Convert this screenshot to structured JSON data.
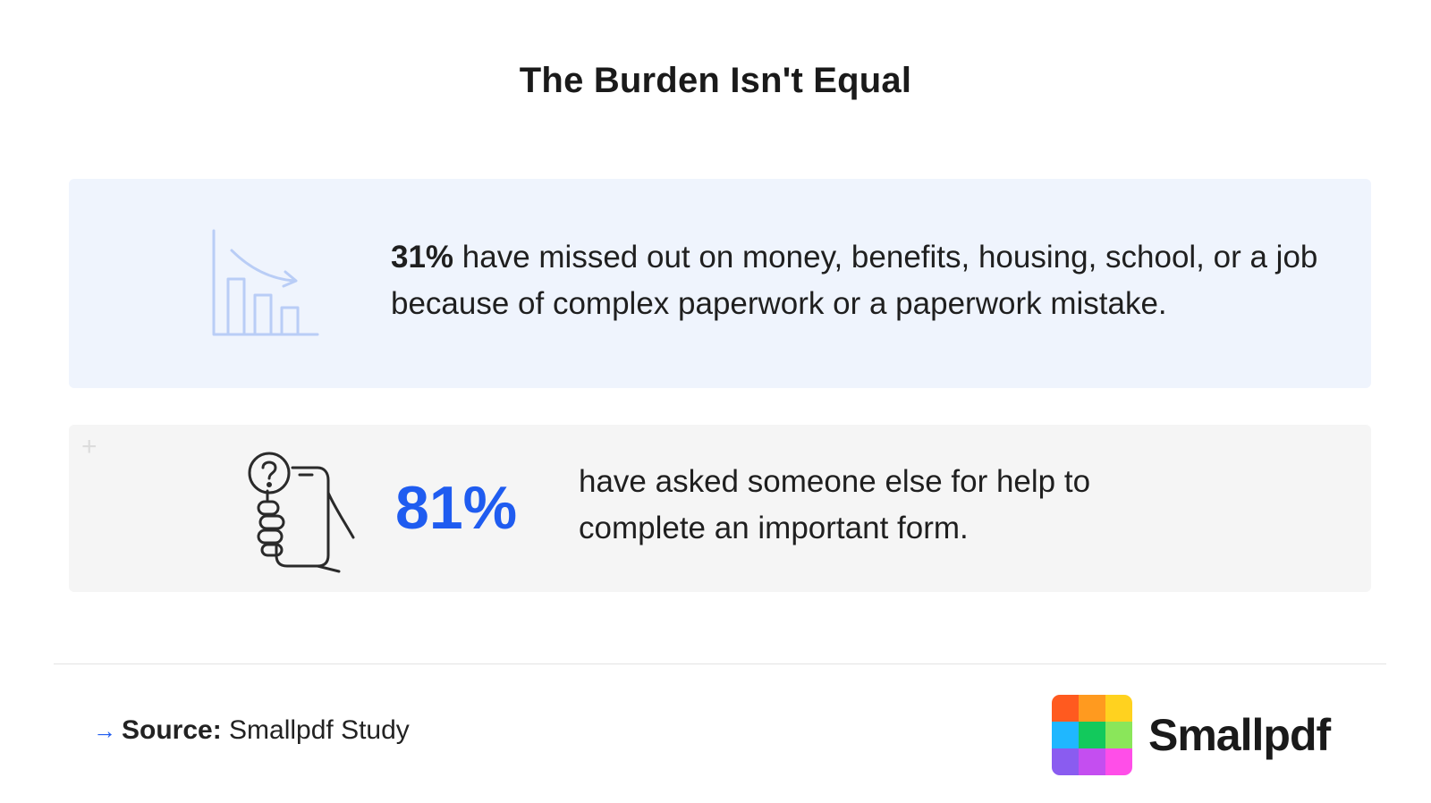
{
  "title": "The Burden Isn't Equal",
  "cards": [
    {
      "icon": "declining-bar-chart-icon",
      "stat_value": "31%",
      "stat_text": " have missed out on money, benefits, housing, school, or a job because of complex paperwork or a paperwork mistake."
    },
    {
      "icon": "phone-question-icon",
      "stat_value": "81%",
      "stat_text": "have asked someone else for help to complete an important form."
    }
  ],
  "source": {
    "arrow": "→",
    "label": "Source:",
    "value": " Smallpdf Study"
  },
  "brand": {
    "name": "Smallpdf",
    "logo_colors": [
      "#ff5a1f",
      "#ff9a1f",
      "#ffd21f",
      "#1fb7ff",
      "#12c95c",
      "#8ae65a",
      "#8a5cf0",
      "#c44ef0",
      "#ff4ee8"
    ]
  },
  "colors": {
    "accent": "#1f5cf0",
    "card_1_bg": "#eff4fd",
    "card_2_bg": "#f5f5f5"
  }
}
